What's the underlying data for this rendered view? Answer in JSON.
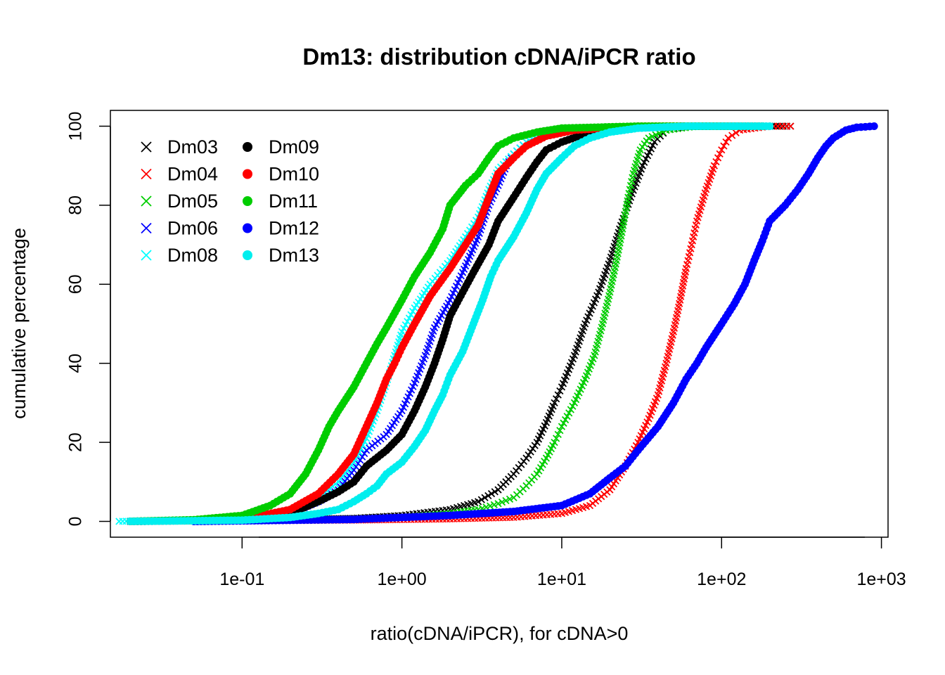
{
  "chart_data": {
    "type": "scatter",
    "title": "Dm13: distribution cDNA/iPCR ratio",
    "xlabel": "ratio(cDNA/iPCR), for cDNA>0",
    "ylabel": "cumulative percentage",
    "x_scale": "log10",
    "xlim": [
      0.015,
      1100
    ],
    "ylim": [
      -4,
      104
    ],
    "x_ticks": [
      0.1,
      1,
      10,
      100,
      1000
    ],
    "x_tick_labels": [
      "1e-01",
      "1e+00",
      "1e+01",
      "1e+02",
      "1e+03"
    ],
    "y_ticks": [
      0,
      20,
      40,
      60,
      80,
      100
    ],
    "y_tick_labels": [
      "0",
      "20",
      "40",
      "60",
      "80",
      "100"
    ],
    "grid": false,
    "legend_position": "top-left",
    "series": [
      {
        "name": "Dm03",
        "marker": "x",
        "color": "#000000",
        "points": [
          [
            0.02,
            0
          ],
          [
            0.1,
            0.3
          ],
          [
            0.5,
            0.8
          ],
          [
            1,
            1.5
          ],
          [
            2,
            3
          ],
          [
            3,
            5
          ],
          [
            4,
            8
          ],
          [
            5,
            12
          ],
          [
            6,
            16
          ],
          [
            7,
            20
          ],
          [
            8,
            25
          ],
          [
            9,
            30
          ],
          [
            10,
            34
          ],
          [
            12,
            42
          ],
          [
            14,
            50
          ],
          [
            17,
            58
          ],
          [
            20,
            66
          ],
          [
            23,
            74
          ],
          [
            27,
            82
          ],
          [
            32,
            90
          ],
          [
            38,
            96
          ],
          [
            45,
            99
          ],
          [
            60,
            100
          ],
          [
            150,
            100
          ],
          [
            270,
            100
          ]
        ]
      },
      {
        "name": "Dm04",
        "marker": "x",
        "color": "#ff0000",
        "points": [
          [
            0.02,
            0
          ],
          [
            0.5,
            0.3
          ],
          [
            2,
            0.6
          ],
          [
            5,
            1
          ],
          [
            10,
            2
          ],
          [
            15,
            4
          ],
          [
            20,
            8
          ],
          [
            25,
            14
          ],
          [
            30,
            20
          ],
          [
            35,
            26
          ],
          [
            40,
            32
          ],
          [
            45,
            40
          ],
          [
            50,
            48
          ],
          [
            55,
            56
          ],
          [
            60,
            64
          ],
          [
            65,
            70
          ],
          [
            70,
            76
          ],
          [
            80,
            84
          ],
          [
            90,
            90
          ],
          [
            100,
            94
          ],
          [
            110,
            97
          ],
          [
            130,
            99
          ],
          [
            200,
            100
          ],
          [
            270,
            100
          ]
        ]
      },
      {
        "name": "Dm05",
        "marker": "x",
        "color": "#00cd00",
        "points": [
          [
            0.02,
            0
          ],
          [
            0.5,
            0.5
          ],
          [
            1,
            1
          ],
          [
            2,
            2
          ],
          [
            3,
            3
          ],
          [
            4,
            4.5
          ],
          [
            5,
            6
          ],
          [
            6,
            9
          ],
          [
            7,
            12
          ],
          [
            8,
            16
          ],
          [
            9,
            20
          ],
          [
            10,
            24
          ],
          [
            12,
            30
          ],
          [
            14,
            36
          ],
          [
            16,
            42
          ],
          [
            18,
            50
          ],
          [
            20,
            58
          ],
          [
            22,
            66
          ],
          [
            24,
            74
          ],
          [
            26,
            82
          ],
          [
            28,
            88
          ],
          [
            31,
            94
          ],
          [
            35,
            97
          ],
          [
            45,
            99
          ],
          [
            70,
            100
          ],
          [
            200,
            100
          ]
        ]
      },
      {
        "name": "Dm06",
        "marker": "x",
        "color": "#0000ff",
        "points": [
          [
            0.02,
            0
          ],
          [
            0.1,
            0.5
          ],
          [
            0.2,
            2
          ],
          [
            0.3,
            5
          ],
          [
            0.4,
            8
          ],
          [
            0.5,
            13
          ],
          [
            0.6,
            18
          ],
          [
            0.8,
            22
          ],
          [
            1,
            28
          ],
          [
            1.2,
            35
          ],
          [
            1.4,
            42
          ],
          [
            1.6,
            49
          ],
          [
            2,
            56
          ],
          [
            2.4,
            63
          ],
          [
            3,
            72
          ],
          [
            3.5,
            80
          ],
          [
            4,
            85
          ],
          [
            4.5,
            90
          ],
          [
            5,
            93
          ],
          [
            6,
            96
          ],
          [
            8,
            98
          ],
          [
            12,
            99.5
          ],
          [
            30,
            100
          ],
          [
            200,
            100
          ]
        ]
      },
      {
        "name": "Dm08",
        "marker": "x",
        "color": "#00ffff",
        "points": [
          [
            0.017,
            0
          ],
          [
            0.1,
            0.6
          ],
          [
            0.2,
            2.5
          ],
          [
            0.3,
            6
          ],
          [
            0.4,
            10
          ],
          [
            0.5,
            15
          ],
          [
            0.6,
            21
          ],
          [
            0.7,
            28
          ],
          [
            0.8,
            35
          ],
          [
            0.9,
            42
          ],
          [
            1,
            48
          ],
          [
            1.2,
            54
          ],
          [
            1.5,
            60
          ],
          [
            2,
            66
          ],
          [
            2.5,
            72
          ],
          [
            3,
            77
          ],
          [
            3.5,
            84
          ],
          [
            4,
            89
          ],
          [
            5,
            93
          ],
          [
            6,
            96
          ],
          [
            8,
            98
          ],
          [
            12,
            99.5
          ],
          [
            30,
            100
          ],
          [
            200,
            100
          ]
        ]
      },
      {
        "name": "Dm09",
        "marker": "dot",
        "color": "#000000",
        "points": [
          [
            0.02,
            0
          ],
          [
            0.1,
            0.4
          ],
          [
            0.2,
            2
          ],
          [
            0.3,
            5
          ],
          [
            0.4,
            7.5
          ],
          [
            0.5,
            10
          ],
          [
            0.6,
            14
          ],
          [
            0.8,
            18
          ],
          [
            1,
            22
          ],
          [
            1.2,
            28
          ],
          [
            1.4,
            34
          ],
          [
            1.6,
            40
          ],
          [
            1.8,
            46
          ],
          [
            2,
            52
          ],
          [
            2.4,
            58
          ],
          [
            2.8,
            63
          ],
          [
            3.5,
            70
          ],
          [
            4,
            76
          ],
          [
            5,
            82
          ],
          [
            6,
            87
          ],
          [
            7,
            91
          ],
          [
            8,
            94
          ],
          [
            10,
            96
          ],
          [
            14,
            98
          ],
          [
            25,
            99.5
          ],
          [
            60,
            100
          ],
          [
            180,
            100
          ]
        ]
      },
      {
        "name": "Dm10",
        "marker": "dot",
        "color": "#ff0000",
        "points": [
          [
            0.02,
            0
          ],
          [
            0.1,
            0.5
          ],
          [
            0.2,
            3
          ],
          [
            0.3,
            7
          ],
          [
            0.4,
            12
          ],
          [
            0.5,
            17
          ],
          [
            0.6,
            24
          ],
          [
            0.7,
            30
          ],
          [
            0.8,
            36
          ],
          [
            0.9,
            40
          ],
          [
            1,
            44
          ],
          [
            1.2,
            50
          ],
          [
            1.5,
            57
          ],
          [
            2,
            64
          ],
          [
            2.5,
            70
          ],
          [
            3,
            75
          ],
          [
            3.5,
            82
          ],
          [
            4,
            88
          ],
          [
            5,
            92
          ],
          [
            6,
            95
          ],
          [
            8,
            97.5
          ],
          [
            12,
            99
          ],
          [
            30,
            100
          ],
          [
            180,
            100
          ]
        ]
      },
      {
        "name": "Dm11",
        "marker": "dot",
        "color": "#00cd00",
        "points": [
          [
            0.02,
            0
          ],
          [
            0.05,
            0.4
          ],
          [
            0.1,
            1.5
          ],
          [
            0.15,
            4
          ],
          [
            0.2,
            7
          ],
          [
            0.25,
            12
          ],
          [
            0.3,
            18
          ],
          [
            0.35,
            24
          ],
          [
            0.4,
            28
          ],
          [
            0.5,
            34
          ],
          [
            0.6,
            40
          ],
          [
            0.7,
            45
          ],
          [
            0.8,
            49
          ],
          [
            1,
            56
          ],
          [
            1.2,
            62
          ],
          [
            1.5,
            68
          ],
          [
            1.8,
            74
          ],
          [
            2,
            80
          ],
          [
            2.5,
            85
          ],
          [
            3,
            88
          ],
          [
            3.5,
            92
          ],
          [
            4,
            95
          ],
          [
            5,
            97
          ],
          [
            7,
            98.5
          ],
          [
            10,
            99.5
          ],
          [
            30,
            100
          ],
          [
            180,
            100
          ]
        ]
      },
      {
        "name": "Dm12",
        "marker": "dot",
        "color": "#0000ff",
        "points": [
          [
            0.05,
            0
          ],
          [
            0.5,
            0.5
          ],
          [
            1,
            1
          ],
          [
            2,
            1.5
          ],
          [
            5,
            2.5
          ],
          [
            10,
            4
          ],
          [
            15,
            7
          ],
          [
            20,
            11
          ],
          [
            25,
            14
          ],
          [
            30,
            18
          ],
          [
            40,
            24
          ],
          [
            50,
            30
          ],
          [
            60,
            36
          ],
          [
            70,
            40
          ],
          [
            80,
            44
          ],
          [
            100,
            50
          ],
          [
            120,
            55
          ],
          [
            140,
            60
          ],
          [
            160,
            66
          ],
          [
            180,
            71
          ],
          [
            200,
            76
          ],
          [
            250,
            80
          ],
          [
            300,
            84
          ],
          [
            350,
            88
          ],
          [
            400,
            92
          ],
          [
            450,
            95
          ],
          [
            500,
            97
          ],
          [
            600,
            99
          ],
          [
            700,
            99.7
          ],
          [
            900,
            100
          ]
        ]
      },
      {
        "name": "Dm13",
        "marker": "dot",
        "color": "#00eeee",
        "points": [
          [
            0.02,
            0
          ],
          [
            0.1,
            0.3
          ],
          [
            0.2,
            1
          ],
          [
            0.3,
            2
          ],
          [
            0.4,
            3
          ],
          [
            0.5,
            5
          ],
          [
            0.6,
            7
          ],
          [
            0.7,
            9
          ],
          [
            0.8,
            12
          ],
          [
            1,
            15
          ],
          [
            1.2,
            19
          ],
          [
            1.4,
            23
          ],
          [
            1.6,
            28
          ],
          [
            1.8,
            32
          ],
          [
            2,
            37
          ],
          [
            2.4,
            43
          ],
          [
            2.8,
            50
          ],
          [
            3.2,
            56
          ],
          [
            3.6,
            62
          ],
          [
            4,
            66
          ],
          [
            5,
            72
          ],
          [
            6,
            78
          ],
          [
            7,
            84
          ],
          [
            8,
            88
          ],
          [
            10,
            92
          ],
          [
            12,
            95
          ],
          [
            15,
            97
          ],
          [
            20,
            98.5
          ],
          [
            30,
            99.5
          ],
          [
            60,
            100
          ],
          [
            200,
            100
          ]
        ]
      }
    ]
  }
}
